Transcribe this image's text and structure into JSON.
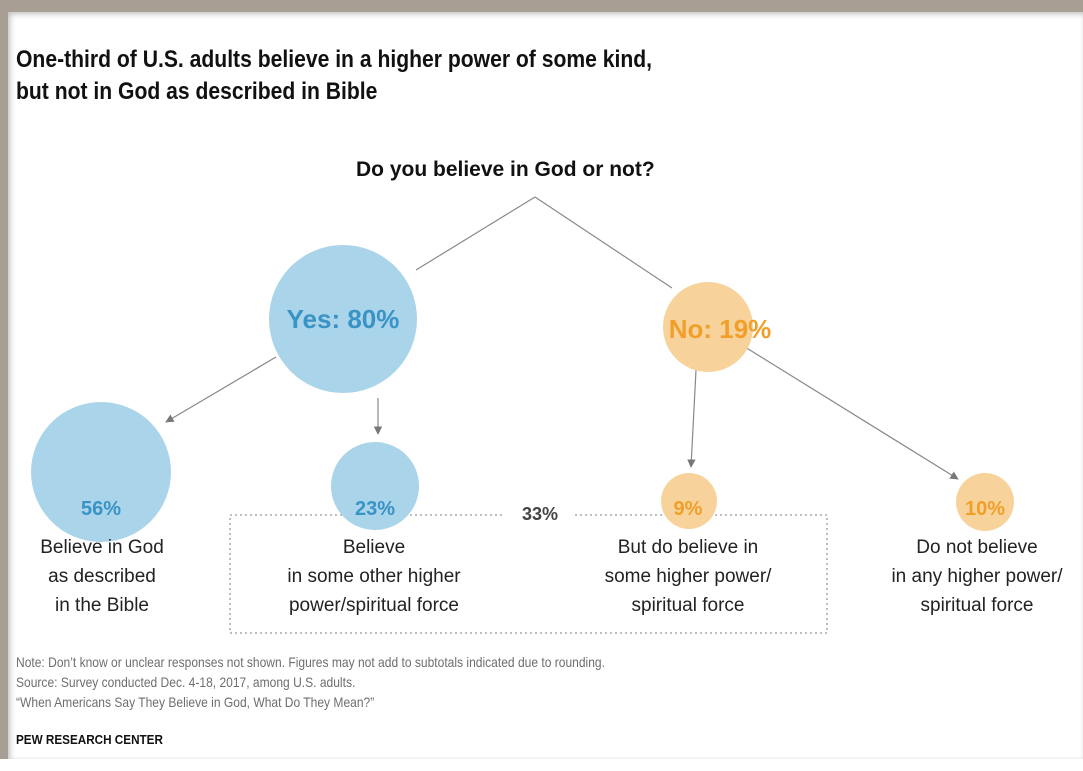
{
  "title_lines": [
    "One-third of U.S. adults believe in a higher power of some kind,",
    "but not in God as described in Bible"
  ],
  "question": "Do you believe in God or not?",
  "colors": {
    "yes": "#a9d4ea",
    "yes_text": "#3a93c5",
    "no": "#f7d39b",
    "no_text": "#f0a02a",
    "line": "#777777"
  },
  "nodes": {
    "yes": {
      "label": "Yes: 80%",
      "value": 80
    },
    "no": {
      "label": "No: 19%",
      "value": 19
    },
    "bible": {
      "label": "56%",
      "value": 56,
      "text": [
        "Believe in God",
        "as described",
        "in the Bible"
      ]
    },
    "other_power": {
      "label": "23%",
      "value": 23,
      "text": [
        "Believe",
        "in some other higher",
        "power/spiritual force"
      ]
    },
    "no_but_believe": {
      "label": "9%",
      "value": 9,
      "text": [
        "But do believe in",
        "some higher power/",
        "spiritual force"
      ]
    },
    "no_not_believe": {
      "label": "10%",
      "value": 10,
      "text": [
        "Do not believe",
        "in any higher power/",
        "spiritual force"
      ]
    }
  },
  "bracket_label": "33%",
  "notes": [
    "Note: Don’t know or unclear responses not shown. Figures may not add to subtotals indicated due to rounding.",
    "Source: Survey conducted Dec. 4-18, 2017, among U.S. adults.",
    "“When Americans Say They Believe in God, What Do They Mean?”"
  ],
  "organization": "PEW RESEARCH CENTER"
}
